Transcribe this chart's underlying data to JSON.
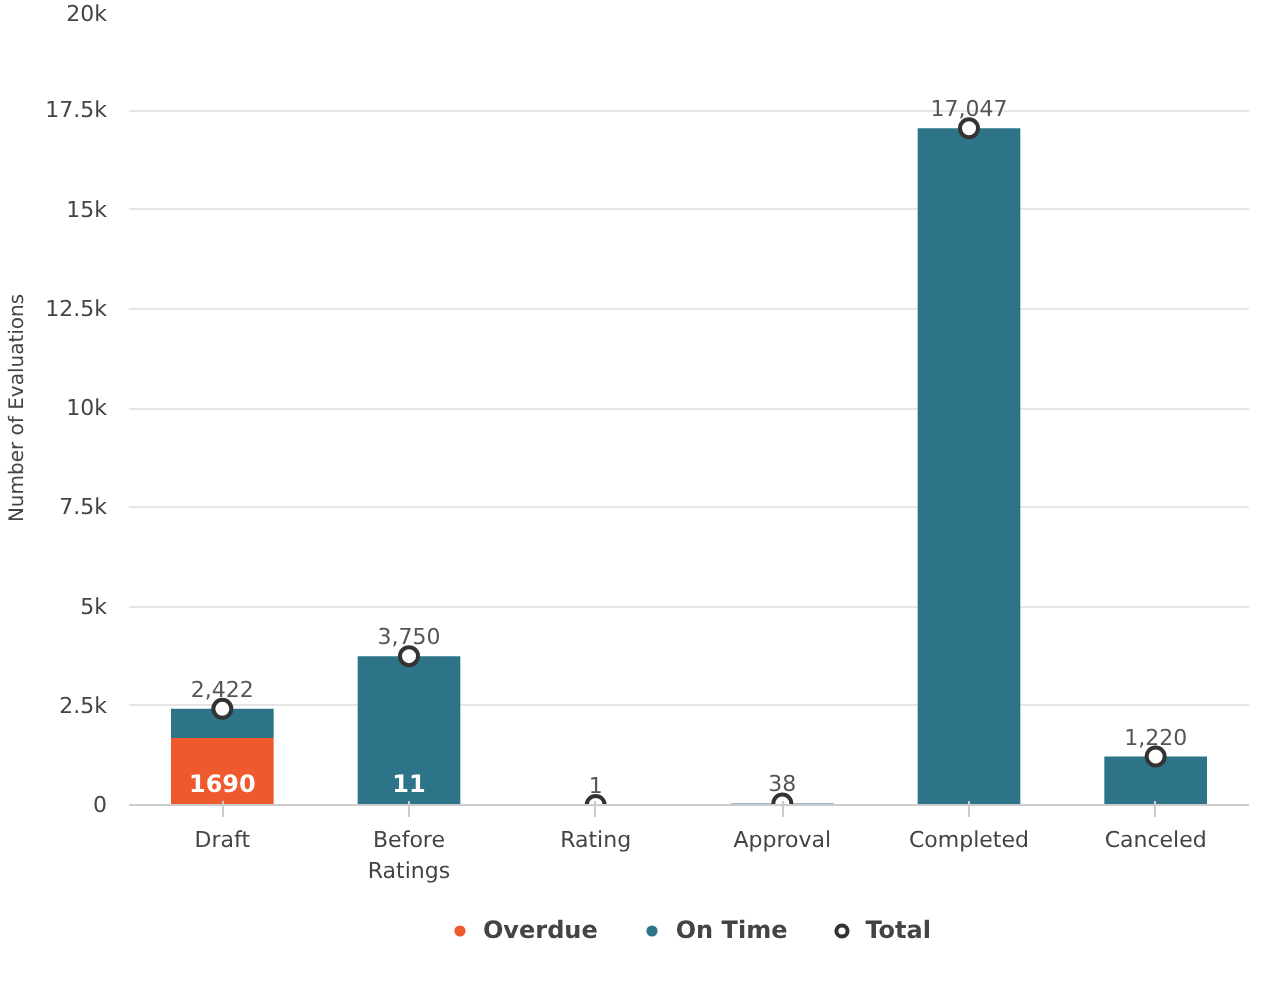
{
  "chart_data": {
    "type": "bar",
    "stacked": true,
    "ylabel": "Number of Evaluations",
    "categories": [
      "Draft",
      "Before\nRatings",
      "Rating",
      "Approval",
      "Completed",
      "Canceled"
    ],
    "series": [
      {
        "name": "Overdue",
        "color": "#ee5a2e",
        "values": [
          1690,
          11,
          null,
          null,
          null,
          null
        ],
        "value_labels": [
          "1690",
          "11",
          null,
          null,
          null,
          null
        ]
      },
      {
        "name": "On Time",
        "color": "#2e7489",
        "values": [
          732,
          3739,
          1,
          38,
          17047,
          1220
        ]
      },
      {
        "name": "Total",
        "type": "scatter",
        "color": "#333333",
        "x": [
          "Draft",
          "Before\nRatings",
          "Rating",
          "Approval",
          "Completed",
          "Canceled"
        ],
        "values": [
          2422,
          3750,
          1,
          38,
          17047,
          1220
        ],
        "value_labels": [
          "2,422",
          "3,750",
          "1",
          "38",
          "17,047",
          "1,220"
        ]
      }
    ],
    "ylim": [
      0,
      20000
    ],
    "yticks": [
      0,
      {
        "value": 2500,
        "label": "2.5k"
      },
      {
        "value": 5000,
        "label": "5k"
      },
      {
        "value": 7500,
        "label": "7.5k"
      },
      {
        "value": 10000,
        "label": "10k"
      },
      {
        "value": 12500,
        "label": "12.5k"
      },
      {
        "value": 15000,
        "label": "15k"
      },
      {
        "value": 17500,
        "label": "17.5k"
      },
      {
        "value": 20000,
        "label": "20k"
      }
    ],
    "grid": "y",
    "legend": "bottom",
    "marker": "circle"
  }
}
